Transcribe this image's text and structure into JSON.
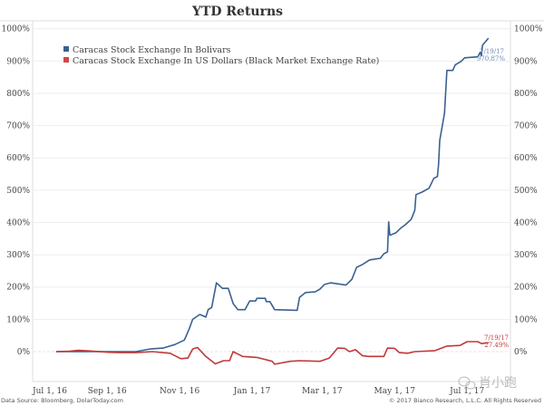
{
  "chart_data": {
    "type": "line",
    "title": "YTD Returns",
    "x_unit": "days since Jul 1, 2016",
    "y_unit": "%",
    "ylim": [
      -100,
      1000
    ],
    "xlim": [
      0,
      402
    ],
    "grid": true,
    "legend_position": "top-left",
    "y_ticks": [
      0,
      100,
      200,
      300,
      400,
      500,
      600,
      700,
      800,
      900,
      1000
    ],
    "y_tick_labels": [
      "0%",
      "100%",
      "200%",
      "300%",
      "400%",
      "500%",
      "600%",
      "700%",
      "800%",
      "900%",
      "1000%"
    ],
    "x_ticks": [
      0,
      62,
      123,
      184,
      243,
      304,
      365
    ],
    "x_tick_labels": [
      "Jul 1, 16",
      "Sep 1, 16",
      "Nov 1, 16",
      "Jan 1, 17",
      "Mar 1, 17",
      "May 1, 17",
      "Jul 1, 17"
    ],
    "series": [
      {
        "name": "Caracas Stock Exchange In Bolivars",
        "color": "#3a6192",
        "points": [
          [
            19,
            0
          ],
          [
            60,
            0
          ],
          [
            86,
            0
          ],
          [
            98,
            8
          ],
          [
            109,
            11
          ],
          [
            119,
            22
          ],
          [
            127,
            36
          ],
          [
            131,
            70
          ],
          [
            134,
            100
          ],
          [
            140,
            115
          ],
          [
            145,
            107
          ],
          [
            147,
            130
          ],
          [
            150,
            137
          ],
          [
            154,
            213
          ],
          [
            159,
            196
          ],
          [
            164,
            196
          ],
          [
            168,
            149
          ],
          [
            172,
            130
          ],
          [
            178,
            130
          ],
          [
            182,
            157
          ],
          [
            187,
            157
          ],
          [
            188,
            165
          ],
          [
            195,
            165
          ],
          [
            196,
            155
          ],
          [
            199,
            155
          ],
          [
            203,
            130
          ],
          [
            222,
            128
          ],
          [
            224,
            168
          ],
          [
            229,
            183
          ],
          [
            237,
            185
          ],
          [
            241,
            193
          ],
          [
            245,
            208
          ],
          [
            250,
            213
          ],
          [
            256,
            210
          ],
          [
            263,
            206
          ],
          [
            268,
            224
          ],
          [
            272,
            261
          ],
          [
            277,
            270
          ],
          [
            283,
            284
          ],
          [
            292,
            289
          ],
          [
            295,
            303
          ],
          [
            298,
            309
          ],
          [
            299,
            402
          ],
          [
            300,
            360
          ],
          [
            305,
            368
          ],
          [
            309,
            382
          ],
          [
            313,
            393
          ],
          [
            318,
            410
          ],
          [
            321,
            438
          ],
          [
            322,
            486
          ],
          [
            327,
            494
          ],
          [
            333,
            506
          ],
          [
            337,
            537
          ],
          [
            340,
            542
          ],
          [
            341,
            579
          ],
          [
            342,
            654
          ],
          [
            346,
            739
          ],
          [
            348,
            871
          ],
          [
            353,
            871
          ],
          [
            355,
            888
          ],
          [
            360,
            899
          ],
          [
            363,
            910
          ],
          [
            374,
            913
          ],
          [
            376,
            927
          ],
          [
            377,
            916
          ],
          [
            378,
            949
          ],
          [
            383,
            970.87
          ]
        ],
        "end_label_date": "7/19/17",
        "end_label_value": "970.87%"
      },
      {
        "name": "Caracas Stock Exchange In US Dollars (Black Market Exchange Rate)",
        "color": "#c0393b",
        "points": [
          [
            19,
            0
          ],
          [
            30,
            1
          ],
          [
            38,
            4
          ],
          [
            48,
            2
          ],
          [
            63,
            -2
          ],
          [
            75,
            -3
          ],
          [
            86,
            -3
          ],
          [
            100,
            0
          ],
          [
            115,
            -5
          ],
          [
            124,
            -22
          ],
          [
            130,
            -20
          ],
          [
            134,
            8
          ],
          [
            138,
            13
          ],
          [
            145,
            -15
          ],
          [
            153,
            -38
          ],
          [
            160,
            -28
          ],
          [
            165,
            -28
          ],
          [
            168,
            0
          ],
          [
            176,
            -15
          ],
          [
            188,
            -18
          ],
          [
            201,
            -30
          ],
          [
            203,
            -39
          ],
          [
            216,
            -30
          ],
          [
            224,
            -28
          ],
          [
            241,
            -30
          ],
          [
            249,
            -20
          ],
          [
            256,
            11
          ],
          [
            262,
            10
          ],
          [
            266,
            0
          ],
          [
            271,
            6
          ],
          [
            277,
            -13
          ],
          [
            282,
            -15
          ],
          [
            295,
            -15
          ],
          [
            298,
            11
          ],
          [
            304,
            10
          ],
          [
            308,
            -3
          ],
          [
            315,
            -5
          ],
          [
            321,
            0
          ],
          [
            338,
            3
          ],
          [
            348,
            17
          ],
          [
            359,
            19
          ],
          [
            365,
            31
          ],
          [
            374,
            31
          ],
          [
            377,
            25
          ],
          [
            383,
            27.49
          ]
        ],
        "end_label_date": "7/19/17",
        "end_label_value": "27.49%"
      }
    ],
    "source": "Data Source: Bloomberg, DolarToday.com",
    "copyright": "© 2017 Bianco Research, L.L.C. All Rights Reserved",
    "watermark": "肖小跑"
  }
}
